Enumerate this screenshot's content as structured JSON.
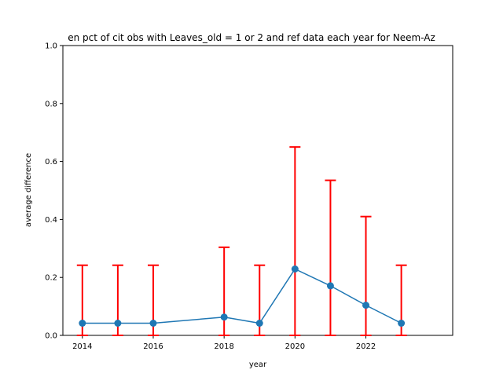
{
  "chart_data": {
    "type": "line",
    "title": "en pct of cit obs with Leaves_old = 1 or 2 and ref data each year for Neem-Az",
    "xlabel": "year",
    "ylabel": "average difference",
    "xlim": [
      2013.45,
      2024.45
    ],
    "ylim": [
      0,
      1
    ],
    "xticks": [
      2014,
      2016,
      2018,
      2020,
      2022
    ],
    "yticks": [
      0.0,
      0.2,
      0.4,
      0.6,
      0.8,
      1.0
    ],
    "ytick_labels": [
      "0.0",
      "0.2",
      "0.4",
      "0.6",
      "0.8",
      "1.0"
    ],
    "grid": false,
    "series": [
      {
        "x": [
          2014,
          2015,
          2016,
          2018,
          2019,
          2020,
          2021,
          2022,
          2023
        ],
        "y": [
          0.042,
          0.042,
          0.042,
          0.063,
          0.042,
          0.229,
          0.171,
          0.104,
          0.042
        ],
        "yerr_upper": [
          0.242,
          0.242,
          0.242,
          0.304,
          0.242,
          0.65,
          0.535,
          0.41,
          0.242
        ],
        "yerr_lower": [
          0.0,
          0.0,
          0.0,
          0.0,
          0.0,
          0.0,
          0.0,
          0.0,
          0.0
        ],
        "color": "#1f77b4",
        "errorbar_color": "#ff0000"
      }
    ]
  }
}
